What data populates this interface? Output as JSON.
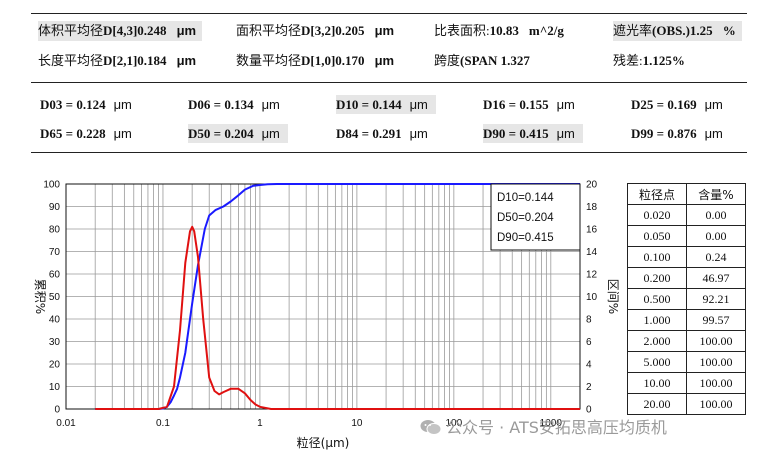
{
  "stats": {
    "row1": [
      {
        "label": "体积平均径",
        "value": "D[4,3]0.248",
        "unit": "μm",
        "shaded": true
      },
      {
        "label": "面积平均径",
        "value": "D[3,2]0.205",
        "unit": "μm",
        "shaded": false
      },
      {
        "label": "比表面积:",
        "value": "10.83",
        "unit": "m^2/g",
        "shaded": false
      },
      {
        "label": "遮光率",
        "value": "(OBS.)1.25",
        "unit": "%",
        "shaded": true
      }
    ],
    "row2": [
      {
        "label": "长度平均径",
        "value": "D[2,1]0.184",
        "unit": "μm",
        "shaded": false
      },
      {
        "label": "数量平均径",
        "value": "D[1,0]0.170",
        "unit": "μm",
        "shaded": false
      },
      {
        "label": "跨度",
        "value": "(SPAN 1.327",
        "unit": "",
        "shaded": false
      },
      {
        "label": "残差:",
        "value": "1.125%",
        "unit": "",
        "shaded": false
      }
    ]
  },
  "dvalues": [
    {
      "name": "D03",
      "value": "0.124",
      "unit": "μm",
      "shaded": false
    },
    {
      "name": "D06",
      "value": "0.134",
      "unit": "μm",
      "shaded": false
    },
    {
      "name": "D10",
      "value": "0.144",
      "unit": "μm",
      "shaded": true
    },
    {
      "name": "D16",
      "value": "0.155",
      "unit": "μm",
      "shaded": false
    },
    {
      "name": "D25",
      "value": "0.169",
      "unit": "μm",
      "shaded": false
    },
    {
      "name": "D65",
      "value": "0.228",
      "unit": "μm",
      "shaded": false
    },
    {
      "name": "D50",
      "value": "0.204",
      "unit": "μm",
      "shaded": true
    },
    {
      "name": "D84",
      "value": "0.291",
      "unit": "μm",
      "shaded": false
    },
    {
      "name": "D90",
      "value": "0.415",
      "unit": "μm",
      "shaded": true
    },
    {
      "name": "D99",
      "value": "0.876",
      "unit": "μm",
      "shaded": false
    }
  ],
  "chart_data": {
    "type": "line",
    "xlabel": "粒径(μm)",
    "ylabel_left": "累积%",
    "ylabel_right": "区间%",
    "x_scale": "log",
    "xlim": [
      0.01,
      2000
    ],
    "ylim_left": [
      0,
      100
    ],
    "ylim_right": [
      0,
      20
    ],
    "x_ticks": [
      "0.01",
      "0.1",
      "1",
      "10",
      "100",
      "1000"
    ],
    "y_ticks_left": [
      "0",
      "10",
      "20",
      "30",
      "40",
      "50",
      "60",
      "70",
      "80",
      "90",
      "100"
    ],
    "y_ticks_right": [
      "0",
      "2",
      "4",
      "6",
      "8",
      "10",
      "12",
      "14",
      "16",
      "18",
      "20"
    ],
    "grid": true,
    "annotation": [
      "D10=0.144",
      "D50=0.204",
      "D90=0.415"
    ],
    "series": [
      {
        "axis": "left",
        "color": "#1a1aff",
        "x": [
          0.02,
          0.09,
          0.1,
          0.11,
          0.12,
          0.13,
          0.14,
          0.15,
          0.17,
          0.2,
          0.23,
          0.27,
          0.3,
          0.35,
          0.42,
          0.5,
          0.6,
          0.7,
          0.85,
          1.0,
          1.2,
          1.5,
          2000
        ],
        "y": [
          0,
          0,
          0.24,
          1,
          3,
          6,
          9,
          14,
          25,
          46.97,
          64,
          80,
          86,
          88.5,
          90,
          92.21,
          95,
          97.5,
          99.2,
          99.57,
          99.9,
          100,
          100
        ]
      },
      {
        "axis": "right",
        "color": "#e01010",
        "x": [
          0.02,
          0.09,
          0.11,
          0.13,
          0.15,
          0.17,
          0.19,
          0.2,
          0.21,
          0.23,
          0.26,
          0.3,
          0.34,
          0.38,
          0.42,
          0.5,
          0.6,
          0.7,
          0.8,
          0.9,
          1.0,
          1.3,
          2000
        ],
        "y": [
          0,
          0,
          0.2,
          2,
          7,
          13,
          15.8,
          16.2,
          15.8,
          13.5,
          8,
          2.8,
          1.6,
          1.3,
          1.5,
          1.8,
          1.8,
          1.4,
          0.8,
          0.4,
          0.2,
          0,
          0
        ]
      }
    ]
  },
  "table": {
    "headers": [
      "粒径点",
      "含量%"
    ],
    "rows": [
      [
        "0.020",
        "0.00"
      ],
      [
        "0.050",
        "0.00"
      ],
      [
        "0.100",
        "0.24"
      ],
      [
        "0.200",
        "46.97"
      ],
      [
        "0.500",
        "92.21"
      ],
      [
        "1.000",
        "99.57"
      ],
      [
        "2.000",
        "100.00"
      ],
      [
        "5.000",
        "100.00"
      ],
      [
        "10.00",
        "100.00"
      ],
      [
        "20.00",
        "100.00"
      ]
    ]
  },
  "watermark": {
    "icon": "wechat-icon",
    "text": "公众号 · ATS安拓思高压均质机"
  }
}
